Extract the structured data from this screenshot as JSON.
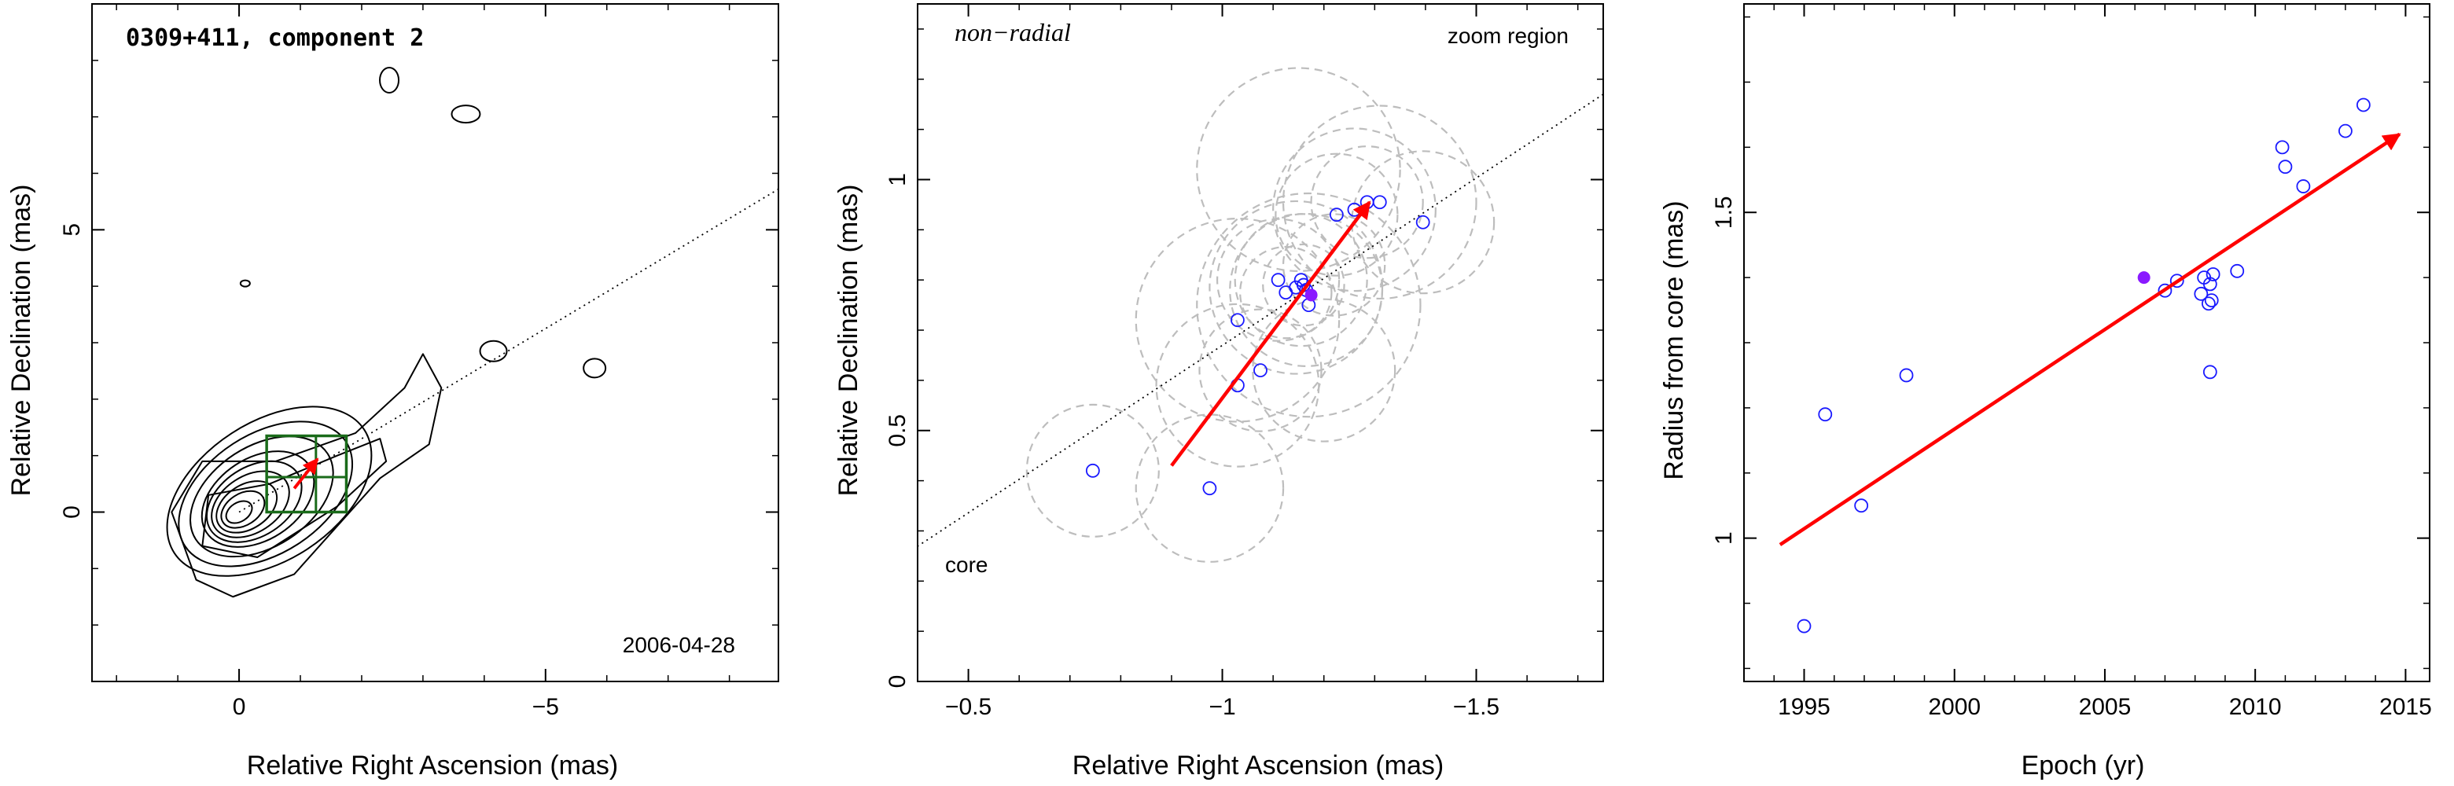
{
  "colors": {
    "contour": "#000000",
    "box": "#1a6b1a",
    "arrow": "#ff0000",
    "open_point": "#1a1aff",
    "filled_point": "#8a1aff",
    "circle": "#bdbdbd"
  },
  "chart_data": [
    {
      "type": "contour",
      "title": "0309+411, component 2",
      "epoch_label": "2006-04-28",
      "xlabel": "Relative Right Ascension (mas)",
      "ylabel": "Relative Declination (mas)",
      "xlim": [
        2.4,
        -8.8
      ],
      "ylim": [
        -3.0,
        9.0
      ],
      "xticks": [
        {
          "value": 0,
          "label": "0"
        },
        {
          "value": -5,
          "label": "−5"
        }
      ],
      "yticks": [
        {
          "value": 0,
          "label": "0"
        },
        {
          "value": 5,
          "label": "5"
        }
      ],
      "direction_line": {
        "from": [
          0,
          0
        ],
        "to": [
          -9.0,
          5.85
        ]
      },
      "contour_core": [
        0,
        0
      ],
      "contour_levels": 9,
      "features": [
        {
          "name": "blob-1",
          "x": -2.45,
          "y": 7.65
        },
        {
          "name": "blob-2",
          "x": -3.7,
          "y": 7.05
        },
        {
          "name": "blob-3",
          "x": -5.8,
          "y": 2.55
        },
        {
          "name": "blob-4",
          "x": -4.15,
          "y": 2.85
        },
        {
          "name": "blob-5",
          "x": -0.1,
          "y": 4.05
        }
      ],
      "zoom_boxes": [
        {
          "x": [
            -0.45,
            -1.75
          ],
          "y": [
            0.0,
            1.35
          ]
        }
      ],
      "arrow": {
        "from": [
          -0.9,
          0.42
        ],
        "to": [
          -1.28,
          0.94
        ]
      },
      "component_position": [
        -1.2,
        0.85
      ]
    },
    {
      "type": "scatter",
      "title": "non−radial",
      "corner_label": "zoom region",
      "core_label": "core",
      "xlabel": "Relative Right Ascension (mas)",
      "ylabel": "Relative Declination (mas)",
      "xlim": [
        -0.4,
        -1.75
      ],
      "ylim": [
        0.0,
        1.35
      ],
      "xticks": [
        {
          "value": -0.5,
          "label": "−0.5"
        },
        {
          "value": -1,
          "label": "−1"
        },
        {
          "value": -1.5,
          "label": "−1.5"
        }
      ],
      "yticks": [
        {
          "value": 0,
          "label": "0"
        },
        {
          "value": 0.5,
          "label": "0.5"
        },
        {
          "value": 1,
          "label": "1"
        }
      ],
      "direction_line": {
        "from": [
          -0.4,
          0.27
        ],
        "to": [
          -1.75,
          1.17
        ]
      },
      "arrow": {
        "from": [
          -0.9,
          0.43
        ],
        "to": [
          -1.29,
          0.955
        ]
      },
      "filled_point": {
        "x": -1.175,
        "y": 0.77
      },
      "points": [
        {
          "x": -0.745,
          "y": 0.42
        },
        {
          "x": -0.975,
          "y": 0.385
        },
        {
          "x": -1.03,
          "y": 0.59
        },
        {
          "x": -1.075,
          "y": 0.62
        },
        {
          "x": -1.03,
          "y": 0.72
        },
        {
          "x": -1.11,
          "y": 0.8
        },
        {
          "x": -1.125,
          "y": 0.775
        },
        {
          "x": -1.145,
          "y": 0.785
        },
        {
          "x": -1.155,
          "y": 0.8
        },
        {
          "x": -1.16,
          "y": 0.79
        },
        {
          "x": -1.165,
          "y": 0.78
        },
        {
          "x": -1.17,
          "y": 0.75
        },
        {
          "x": -1.225,
          "y": 0.93
        },
        {
          "x": -1.26,
          "y": 0.94
        },
        {
          "x": -1.285,
          "y": 0.955
        },
        {
          "x": -1.31,
          "y": 0.955
        },
        {
          "x": -1.395,
          "y": 0.915
        }
      ],
      "uncertainty_circles": [
        {
          "x": -0.745,
          "y": 0.42,
          "r": 0.13
        },
        {
          "x": -0.975,
          "y": 0.385,
          "r": 0.145
        },
        {
          "x": -1.03,
          "y": 0.59,
          "r": 0.16
        },
        {
          "x": -1.075,
          "y": 0.62,
          "r": 0.12
        },
        {
          "x": -1.03,
          "y": 0.72,
          "r": 0.2
        },
        {
          "x": -1.11,
          "y": 0.8,
          "r": 0.12
        },
        {
          "x": -1.125,
          "y": 0.775,
          "r": 0.09
        },
        {
          "x": -1.145,
          "y": 0.785,
          "r": 0.17
        },
        {
          "x": -1.155,
          "y": 0.8,
          "r": 0.13
        },
        {
          "x": -1.16,
          "y": 0.79,
          "r": 0.08
        },
        {
          "x": -1.165,
          "y": 0.78,
          "r": 0.15
        },
        {
          "x": -1.17,
          "y": 0.75,
          "r": 0.22
        },
        {
          "x": -1.225,
          "y": 0.93,
          "r": 0.12
        },
        {
          "x": -1.26,
          "y": 0.94,
          "r": 0.16
        },
        {
          "x": -1.285,
          "y": 0.955,
          "r": 0.11
        },
        {
          "x": -1.31,
          "y": 0.955,
          "r": 0.19
        },
        {
          "x": -1.395,
          "y": 0.915,
          "r": 0.14
        },
        {
          "x": -1.15,
          "y": 1.02,
          "r": 0.2
        },
        {
          "x": -1.2,
          "y": 0.62,
          "r": 0.14
        },
        {
          "x": -1.22,
          "y": 0.83,
          "r": 0.1
        }
      ]
    },
    {
      "type": "scatter",
      "xlabel": "Epoch (yr)",
      "ylabel": "Radius from core (mas)",
      "xlim": [
        1993.0,
        2015.8
      ],
      "ylim": [
        0.78,
        1.82
      ],
      "xticks": [
        {
          "value": 1995,
          "label": "1995"
        },
        {
          "value": 2000,
          "label": "2000"
        },
        {
          "value": 2005,
          "label": "2005"
        },
        {
          "value": 2010,
          "label": "2010"
        },
        {
          "value": 2015,
          "label": "2015"
        }
      ],
      "yticks": [
        {
          "value": 1,
          "label": "1"
        },
        {
          "value": 1.5,
          "label": "1.5"
        }
      ],
      "arrow": {
        "from": [
          1994.2,
          0.99
        ],
        "to": [
          2014.8,
          1.62
        ]
      },
      "filled_point": {
        "x": 2006.3,
        "y": 1.4
      },
      "points": [
        {
          "x": 1995.0,
          "y": 0.865
        },
        {
          "x": 1995.7,
          "y": 1.19
        },
        {
          "x": 1996.9,
          "y": 1.05
        },
        {
          "x": 1998.4,
          "y": 1.25
        },
        {
          "x": 2007.0,
          "y": 1.38
        },
        {
          "x": 2007.4,
          "y": 1.395
        },
        {
          "x": 2008.2,
          "y": 1.375
        },
        {
          "x": 2008.3,
          "y": 1.4
        },
        {
          "x": 2008.45,
          "y": 1.36
        },
        {
          "x": 2008.5,
          "y": 1.39
        },
        {
          "x": 2008.55,
          "y": 1.365
        },
        {
          "x": 2008.6,
          "y": 1.405
        },
        {
          "x": 2008.5,
          "y": 1.255
        },
        {
          "x": 2009.4,
          "y": 1.41
        },
        {
          "x": 2010.9,
          "y": 1.6
        },
        {
          "x": 2011.0,
          "y": 1.57
        },
        {
          "x": 2011.6,
          "y": 1.54
        },
        {
          "x": 2013.0,
          "y": 1.625
        },
        {
          "x": 2013.6,
          "y": 1.665
        }
      ]
    }
  ]
}
